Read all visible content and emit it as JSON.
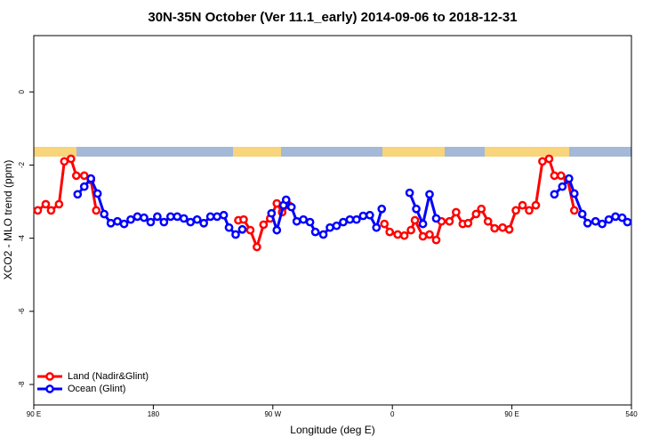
{
  "chart_data": {
    "type": "line",
    "title": "30N-35N October (Ver 11.1_early)   2014-09-06 to 2018-12-31",
    "x_label": "Longitude (deg E)",
    "y_label": "XCO2 - MLO trend (ppm)",
    "xlim": [
      90,
      540
    ],
    "ylim": [
      -8.56,
      1.54
    ],
    "xticks": [
      {
        "value": 90,
        "label": "90 E"
      },
      180,
      {
        "value": 270,
        "label": "90 W"
      },
      {
        "value": 360,
        "label": "0"
      },
      {
        "value": 450,
        "label": "90 E"
      },
      540
    ],
    "yticks": [
      0,
      -2,
      -4,
      -6,
      -8
    ],
    "legend": "bottom-left",
    "series": [
      {
        "name": "Land (Nadir&Glint)",
        "color": "#ff0000",
        "x": [
          93,
          99,
          103,
          109,
          113,
          118,
          122,
          128,
          133,
          137,
          null,
          244,
          248,
          253,
          258,
          263,
          268,
          273,
          277,
          282,
          null,
          354,
          358,
          364,
          369,
          374,
          377,
          383,
          388,
          393,
          397,
          403,
          408,
          413,
          417,
          423,
          427,
          432,
          437,
          443,
          448,
          453,
          458,
          463,
          468,
          473,
          478,
          482,
          487,
          492,
          497
        ],
        "values": [
          -3.24,
          -3.07,
          -3.24,
          -3.07,
          -1.9,
          -1.83,
          -2.29,
          -2.29,
          -2.41,
          -3.24,
          null,
          -3.51,
          -3.49,
          -3.78,
          -4.24,
          -3.63,
          -3.46,
          -3.05,
          -3.29,
          -3.1,
          null,
          -3.61,
          -3.83,
          -3.9,
          -3.93,
          -3.78,
          -3.51,
          -3.95,
          -3.9,
          -4.05,
          -3.54,
          -3.54,
          -3.29,
          -3.61,
          -3.59,
          -3.34,
          -3.2,
          -3.54,
          -3.73,
          -3.71,
          -3.76,
          -3.24,
          -3.1,
          -3.24,
          -3.1,
          -1.9,
          -1.83,
          -2.29,
          -2.29,
          -2.41,
          -3.24
        ]
      },
      {
        "name": "Ocean (Glint)",
        "color": "#0000ff",
        "x": [
          123,
          128,
          133,
          138,
          143,
          148,
          153,
          158,
          163,
          168,
          173,
          178,
          183,
          188,
          193,
          198,
          203,
          208,
          213,
          218,
          223,
          228,
          233,
          237,
          242,
          247,
          null,
          269,
          273,
          278,
          280,
          284,
          288,
          293,
          298,
          302,
          308,
          313,
          318,
          323,
          328,
          333,
          338,
          343,
          348,
          352,
          null,
          373,
          378,
          383,
          388,
          393,
          null,
          482,
          488,
          493,
          497,
          503,
          507,
          513,
          518,
          523,
          528,
          533,
          537
        ],
        "values": [
          -2.8,
          -2.59,
          -2.37,
          -2.78,
          -3.34,
          -3.59,
          -3.54,
          -3.61,
          -3.49,
          -3.41,
          -3.44,
          -3.56,
          -3.41,
          -3.56,
          -3.41,
          -3.41,
          -3.46,
          -3.56,
          -3.49,
          -3.59,
          -3.41,
          -3.41,
          -3.37,
          -3.71,
          -3.9,
          -3.76,
          null,
          -3.32,
          -3.78,
          -3.1,
          -2.95,
          -3.15,
          -3.54,
          -3.49,
          -3.56,
          -3.83,
          -3.9,
          -3.71,
          -3.66,
          -3.56,
          -3.49,
          -3.49,
          -3.39,
          -3.37,
          -3.71,
          -3.2,
          null,
          -2.76,
          -3.2,
          -3.61,
          -2.8,
          -3.46,
          null,
          -2.8,
          -2.59,
          -2.37,
          -2.78,
          -3.34,
          -3.59,
          -3.54,
          -3.61,
          -3.49,
          -3.41,
          -3.44,
          -3.56
        ]
      }
    ]
  }
}
